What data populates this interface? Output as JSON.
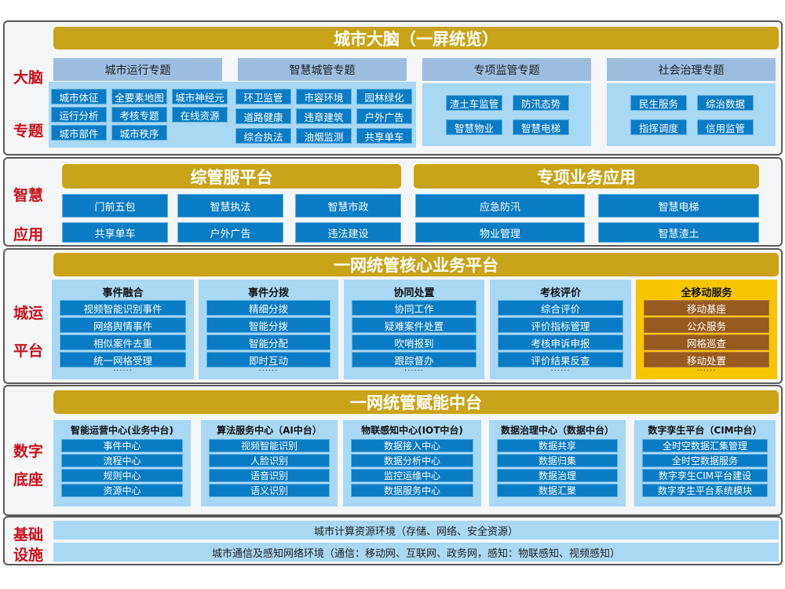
{
  "brain": {
    "side": [
      "大脑",
      "专题"
    ],
    "title": "城市大脑（一屏统览）",
    "themes": [
      {
        "label": "城市运行专题",
        "items": [
          "城市体征",
          "全要素地图",
          "城市神经元",
          "运行分析",
          "考核专题",
          "在线资源",
          "城市部件",
          "城市秩序"
        ]
      },
      {
        "label": "智慧城管专题",
        "items": [
          "环卫监管",
          "市容环境",
          "园林绿化",
          "道路健康",
          "违章建筑",
          "户外广告",
          "综合执法",
          "油烟监测",
          "共享单车"
        ]
      },
      {
        "label": "专项监管专题",
        "items": [
          "渣土车监管",
          "防汛态势",
          "智慧物业",
          "智慧电梯"
        ]
      },
      {
        "label": "社会治理专题",
        "items": [
          "民生服务",
          "综治数据",
          "指挥调度",
          "信用监管"
        ]
      }
    ]
  },
  "apps": {
    "side": [
      "智慧",
      "应用"
    ],
    "left": {
      "title": "综管服平台",
      "items": [
        "门前五包",
        "智慧执法",
        "智慧市政",
        "共享单车",
        "户外广告",
        "违法建设"
      ]
    },
    "right": {
      "title": "专项业务应用",
      "items": [
        "应急防汛",
        "智慧电梯",
        "物业管理",
        "智慧渣土"
      ]
    }
  },
  "ops": {
    "side": [
      "城运",
      "平台"
    ],
    "title": "一网统管核心业务平台",
    "more": "······",
    "columns": [
      {
        "title": "事件融合",
        "items": [
          "视频智能识别事件",
          "网络舆情事件",
          "相似案件去重",
          "统一网格受理"
        ]
      },
      {
        "title": "事件分拨",
        "items": [
          "精细分拨",
          "智能分拨",
          "智能分配",
          "即时互动"
        ]
      },
      {
        "title": "协同处置",
        "items": [
          "协同工作",
          "疑难案件处置",
          "吹哨报到",
          "跟踪督办"
        ]
      },
      {
        "title": "考核评价",
        "items": [
          "综合评价",
          "评价指标管理",
          "考核申诉申报",
          "评价结果反查"
        ]
      },
      {
        "title": "全移动服务",
        "items": [
          "移动基座",
          "公众服务",
          "网格巡查",
          "移动处置"
        ]
      }
    ]
  },
  "base": {
    "side": [
      "数字",
      "底座"
    ],
    "title": "一网统管赋能中台",
    "columns": [
      {
        "title": "智能运营中心(业务中台)",
        "items": [
          "事件中心",
          "流程中心",
          "规则中心",
          "资源中心"
        ]
      },
      {
        "title": "算法服务中心（AI中台）",
        "items": [
          "视频智能识别",
          "人脸识别",
          "语音识别",
          "语义识别"
        ]
      },
      {
        "title": "物联感知中心(IOT中台)",
        "items": [
          "数据接入中心",
          "数据分析中心",
          "监控运维中心",
          "数据服务中心"
        ]
      },
      {
        "title": "数据治理中心（数据中台）",
        "items": [
          "数据共享",
          "数据归集",
          "数据治理",
          "数据汇聚"
        ]
      },
      {
        "title": "数字孪生平台（CIM中台）",
        "items": [
          "全时空数据汇集管理",
          "全时空数据服务",
          "数字孪生CIM平台建设",
          "数字孪生平台系统模块"
        ]
      }
    ]
  },
  "infra": {
    "side": [
      "基础",
      "设施"
    ],
    "rows": [
      "城市计算资源环境（存储、网络、安全资源）",
      "城市通信及感知网络环境（通信：移动网、互联网、政务网，感知：物联感知、视频感知）"
    ]
  },
  "colors": {
    "gold": "#c9a318",
    "blue": "#0a7cc5",
    "lightblue": "#a8d8f4",
    "header": "#9dbde0",
    "yellow": "#f7c600",
    "brown": "#985a1e",
    "side": "#c8101a"
  }
}
